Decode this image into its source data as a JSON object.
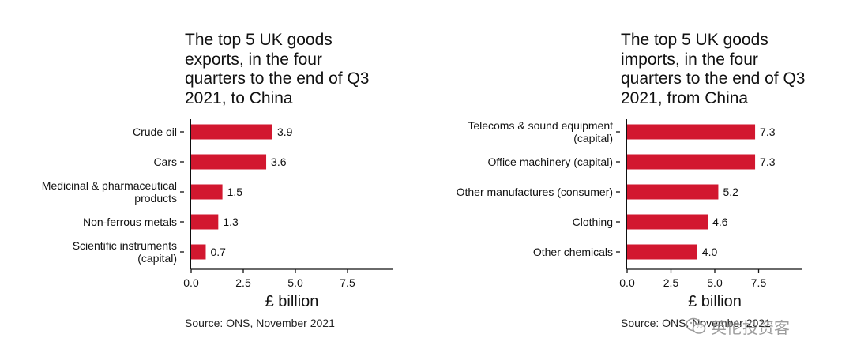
{
  "chart_data": [
    {
      "type": "bar",
      "orientation": "horizontal",
      "title": "The top 5 UK goods\nexports, in the four\nquarters to the end of Q3\n2021, to China",
      "categories": [
        "Crude oil",
        "Cars",
        "Medicinal & pharmaceutical\nproducts",
        "Non-ferrous metals",
        "Scientific instruments\n(capital)"
      ],
      "values": [
        3.9,
        3.6,
        1.5,
        1.3,
        0.7
      ],
      "value_labels": [
        "3.9",
        "3.6",
        "1.5",
        "1.3",
        "0.7"
      ],
      "xlabel": "£ billion",
      "xlim": [
        0,
        9.5
      ],
      "xticks": [
        0,
        2.5,
        5,
        7.5
      ],
      "xtick_labels": [
        "0.0",
        "2.5",
        "5.0",
        "7.5"
      ],
      "bar_color": "#d2172f",
      "grid": false,
      "source": "Source: ONS, November 2021"
    },
    {
      "type": "bar",
      "orientation": "horizontal",
      "title": "The top 5 UK goods\nimports, in the four\nquarters to the end of Q3\n2021, from China",
      "categories": [
        "Telecoms & sound equipment\n(capital)",
        "Office machinery (capital)",
        "Other manufactures (consumer)",
        "Clothing",
        "Other chemicals"
      ],
      "values": [
        7.3,
        7.3,
        5.2,
        4.6,
        4.0
      ],
      "value_labels": [
        "7.3",
        "7.3",
        "5.2",
        "4.6",
        "4.0"
      ],
      "xlabel": "£ billion",
      "xlim": [
        0,
        9.8
      ],
      "xticks": [
        0,
        2.5,
        5,
        7.5
      ],
      "xtick_labels": [
        "0.0",
        "2.5",
        "5.0",
        "7.5"
      ],
      "bar_color": "#d2172f",
      "grid": false,
      "source": "Source: ONS, November 2021"
    }
  ],
  "watermark": {
    "text": "英伦投资客",
    "icon": "wechat-logo-icon"
  }
}
